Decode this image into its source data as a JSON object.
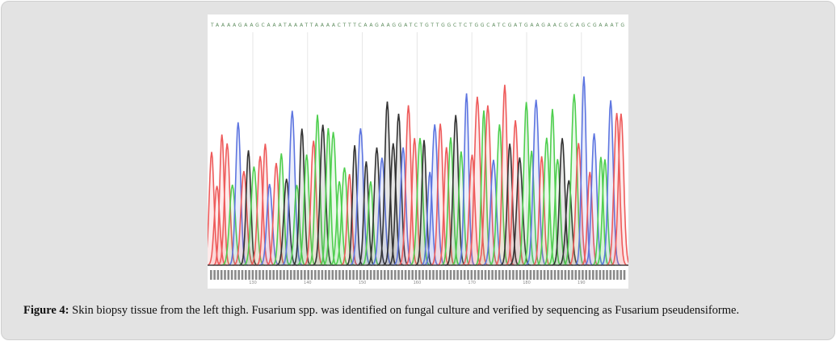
{
  "figure": {
    "sequence": "TAAAAGAAGCAAATAAATTAAAACTTTCAAGAAGGATCTGTTGGCTCTGGCATCGATGAAGAACGCAGCGAAATG",
    "scale_labels": [
      "130",
      "140",
      "150",
      "160",
      "170",
      "180",
      "190"
    ],
    "caption": {
      "label": "Figure 4:",
      "text": "Skin biopsy tissue from the left thigh. Fusarium spp. was identified on fungal culture and verified by sequencing as Fusarium pseudensiforme."
    }
  }
}
